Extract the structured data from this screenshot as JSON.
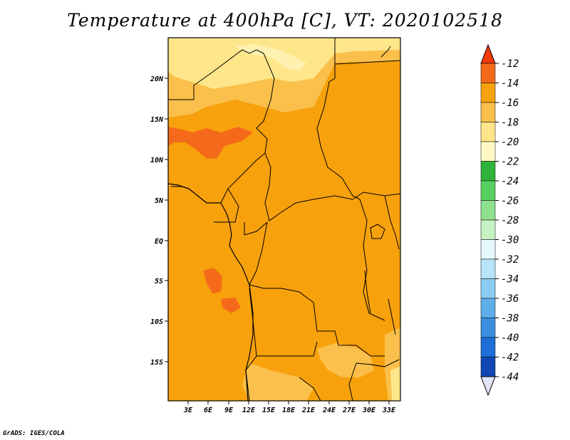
{
  "title": "Temperature at 400hPa [C], VT: 2020102518",
  "credit": "GrADS: IGES/COLA",
  "map": {
    "y_labels": [
      "20N",
      "15N",
      "10N",
      "5N",
      "EQ",
      "5S",
      "10S",
      "15S"
    ],
    "x_labels": [
      "3E",
      "6E",
      "9E",
      "12E",
      "15E",
      "18E",
      "21E",
      "24E",
      "27E",
      "30E",
      "33E"
    ],
    "field_colors": {
      "lt_-18": "#ffe68a",
      "-18_-16": "#fbc04b",
      "-16_-14": "#f7a10c",
      "-14_-12": "#f46a1a",
      "lightest": "#fff2b0"
    }
  },
  "colorbar": {
    "labels": [
      "-12",
      "-14",
      "-16",
      "-18",
      "-20",
      "-22",
      "-24",
      "-26",
      "-28",
      "-30",
      "-32",
      "-34",
      "-36",
      "-38",
      "-40",
      "-42",
      "-44"
    ],
    "top_arrow_color": "#f23c0c",
    "colors": [
      "#f46a1a",
      "#f7a10c",
      "#fbc04b",
      "#ffe68a",
      "#fff7c4",
      "#2fb33a",
      "#56d161",
      "#8ee18f",
      "#c6f1c3",
      "#e6f8fc",
      "#b8e4f7",
      "#8bcdf2",
      "#5eaee9",
      "#3a8fe0",
      "#1d6ed8",
      "#1147b2",
      "#0a1a7a"
    ],
    "bottom_arrow_color": "#e0e4f8"
  }
}
